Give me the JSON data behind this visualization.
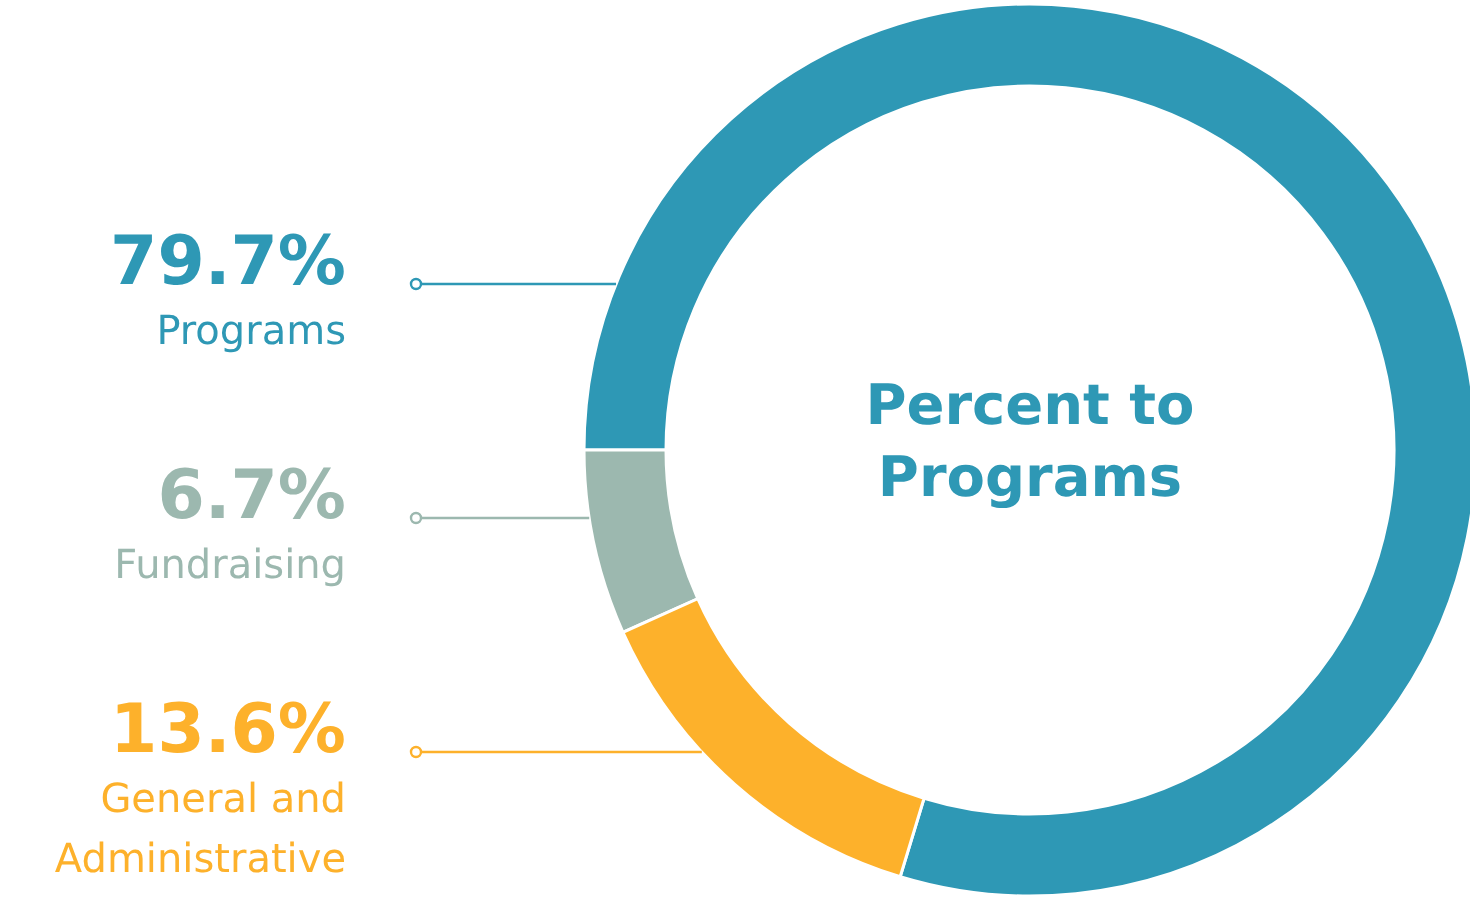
{
  "chart_data": {
    "type": "donut",
    "title": "Percent to Programs",
    "categories": [
      "Programs",
      "Fundraising",
      "General and Administrative"
    ],
    "values": [
      79.7,
      6.7,
      13.6
    ],
    "value_labels": [
      "79.7%",
      "6.7%",
      "13.6%"
    ],
    "colors": [
      "#2e98b5",
      "#9cb8af",
      "#fdb12b"
    ]
  }
}
